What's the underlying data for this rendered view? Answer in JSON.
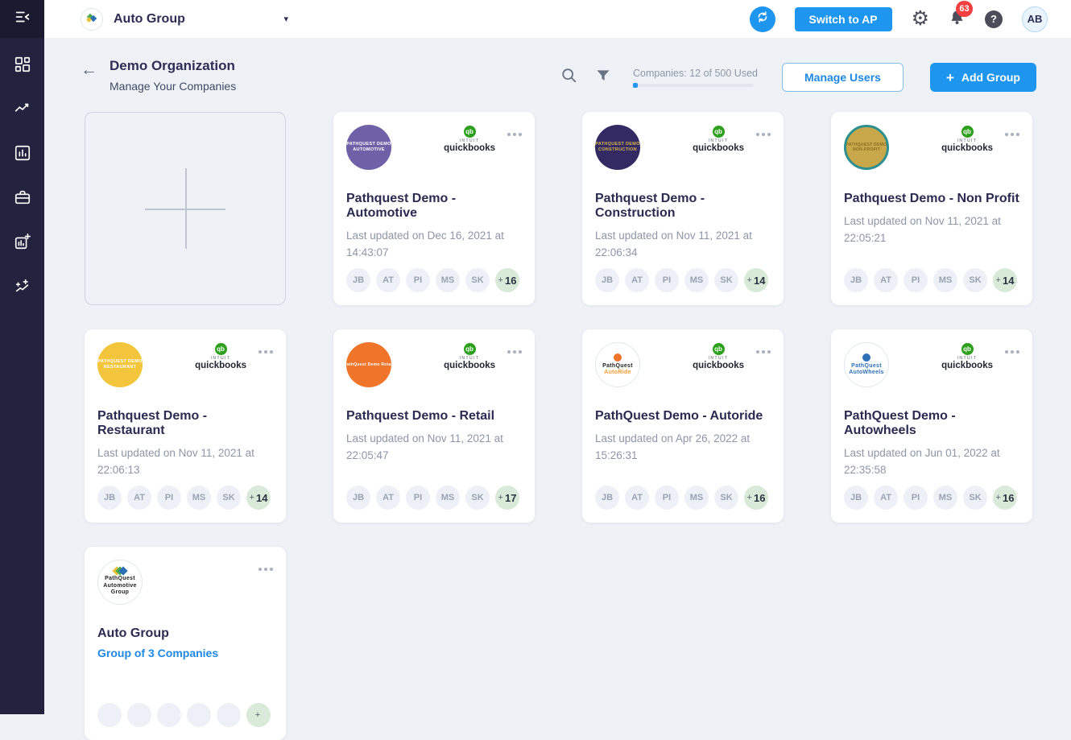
{
  "colors": {
    "accent_blue": "#1e96f0",
    "link_blue": "#1e88e5",
    "badge_red": "#f23f3f",
    "quickbooks_green": "#2ca01c",
    "sidebar_bg": "#232340",
    "sidebar_top_bg": "#1a1a31",
    "page_bg": "#eef2f7",
    "chip_bg": "#edf1f7",
    "overflow_chip_bg": "#d9ead8",
    "group_logo_diamonds": [
      "#e8c33a",
      "#4aa851",
      "#2d6fb5"
    ]
  },
  "topbar": {
    "org_name": "Auto Group",
    "org_caret": "▾",
    "switch_to_ap": "Switch to AP",
    "notifications_count": "63",
    "avatar_initials": "AB",
    "help_glyph": "?",
    "gear_glyph": "⚙"
  },
  "sidebar": {
    "icons": [
      "menu-collapse-icon",
      "dashboard-icon",
      "trend-icon",
      "bar-chart-icon",
      "briefcase-icon",
      "report-add-icon",
      "sparkles-icon"
    ]
  },
  "header": {
    "back_glyph": "←",
    "title": "Demo Organization",
    "subtitle": "Manage Your Companies",
    "usage_label": "Companies: 12 of 500 Used",
    "usage_used": 12,
    "usage_total": 500,
    "manage_users": "Manage Users",
    "add_group_plus": "+",
    "add_group": "Add Group"
  },
  "quickbooks_badge": {
    "circle_label": "qb",
    "intuit_label": "intuit",
    "word": "quickbooks"
  },
  "avatar_overflow_prefix": "+",
  "cards": [
    {
      "type": "add"
    },
    {
      "type": "company",
      "title": "Pathquest Demo - Automotive",
      "updated": "Last updated on Dec 16, 2021 at 14:43:07",
      "has_quickbooks": true,
      "avatars": [
        "JB",
        "AT",
        "PI",
        "MS",
        "SK"
      ],
      "extra_count": "16",
      "logo": {
        "bg": "#6e61a8",
        "lines": [
          "PATHQUEST DEMO",
          "AUTOMOTIVE"
        ],
        "text_color": "#ffffff",
        "font_size": 5.5
      }
    },
    {
      "type": "company",
      "title": "Pathquest Demo - Construction",
      "updated": "Last updated on Nov 11, 2021 at 22:06:34",
      "has_quickbooks": true,
      "avatars": [
        "JB",
        "AT",
        "PI",
        "MS",
        "SK"
      ],
      "extra_count": "14",
      "logo": {
        "bg": "#332a63",
        "lines": [
          "PATHQUEST DEMO",
          "CONSTRUCTION"
        ],
        "text_color": "#d9b64a",
        "font_size": 5.5
      }
    },
    {
      "type": "company",
      "title": "Pathquest Demo - Non Profit",
      "updated": "Last updated on Nov 11, 2021 at 22:05:21",
      "has_quickbooks": true,
      "avatars": [
        "JB",
        "AT",
        "PI",
        "MS",
        "SK"
      ],
      "extra_count": "14",
      "logo": {
        "bg": "#c9a84c",
        "ring": "#2e8f8f",
        "lines": [
          "PATHQUEST DEMO",
          "NON-PROFIT"
        ],
        "text_color": "#8a6d1f",
        "font_size": 5
      }
    },
    {
      "type": "company",
      "title": "Pathquest Demo - Restaurant",
      "updated": "Last updated on Nov 11, 2021 at 22:06:13",
      "has_quickbooks": true,
      "avatars": [
        "JB",
        "AT",
        "PI",
        "MS",
        "SK"
      ],
      "extra_count": "14",
      "logo": {
        "bg": "#f2c53d",
        "lines": [
          "PATHQUEST DEMO",
          "RESTAURANT"
        ],
        "text_color": "#ffffff",
        "font_size": 5.5
      }
    },
    {
      "type": "company",
      "title": "Pathquest Demo - Retail",
      "updated": "Last updated on Nov 11, 2021 at 22:05:47",
      "has_quickbooks": true,
      "avatars": [
        "JB",
        "AT",
        "PI",
        "MS",
        "SK"
      ],
      "extra_count": "17",
      "logo": {
        "bg": "#f0742a",
        "lines": [
          "PathQuest Demo Retail"
        ],
        "text_color": "#ffffff",
        "font_size": 5
      }
    },
    {
      "type": "company",
      "title": "PathQuest Demo - Autoride",
      "updated": "Last updated on Apr 26, 2022 at 15:26:31",
      "has_quickbooks": true,
      "avatars": [
        "JB",
        "AT",
        "PI",
        "MS",
        "SK"
      ],
      "extra_count": "16",
      "logo": {
        "bg": "#ffffff",
        "border": "#e2e7ef",
        "mark": "dot",
        "mark_color": "#f0742a",
        "lines": [
          "PathQuest",
          "AutoRide"
        ],
        "line_colors": [
          "#222222",
          "#f49b33"
        ],
        "font_size": 7
      }
    },
    {
      "type": "company",
      "title": "PathQuest Demo - Autowheels",
      "updated": "Last updated on Jun 01, 2022 at 22:35:58",
      "has_quickbooks": true,
      "avatars": [
        "JB",
        "AT",
        "PI",
        "MS",
        "SK"
      ],
      "extra_count": "16",
      "logo": {
        "bg": "#ffffff",
        "border": "#e2e7ef",
        "mark": "dot",
        "mark_color": "#2d6fb5",
        "lines": [
          "PathQuest",
          "AutoWheels"
        ],
        "line_colors": [
          "#2d6fb5",
          "#2d6fb5"
        ],
        "font_size": 7
      }
    },
    {
      "type": "group",
      "title": "Auto Group",
      "subtitle_link": "Group of 3 Companies",
      "has_quickbooks": false,
      "avatars": [
        "",
        "",
        "",
        "",
        ""
      ],
      "extra_count": "",
      "logo": {
        "bg": "#ffffff",
        "border": "#e2e7ef",
        "mark": "diamonds",
        "lines": [
          "PathQuest",
          "Automotive",
          "Group"
        ],
        "text_color": "#1f1f1f",
        "font_size": 7
      }
    }
  ]
}
